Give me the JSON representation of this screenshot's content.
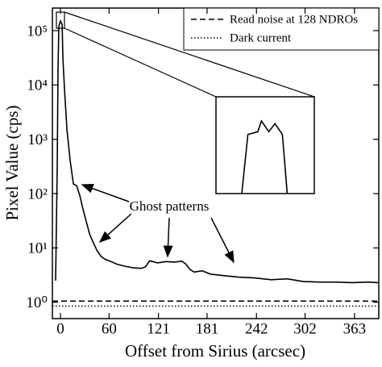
{
  "chart_data": {
    "type": "line",
    "x_label": "Offset from Sirius (arcsec)",
    "y_label": "Pixel Value (cps)",
    "log_y": true,
    "xlim": [
      -10,
      393
    ],
    "ylim": [
      0.5,
      260000
    ],
    "xticks": [
      0,
      60,
      121,
      181,
      242,
      302,
      363
    ],
    "yticks": [
      {
        "value": 1,
        "label": "10⁰"
      },
      {
        "value": 10,
        "label": "10¹"
      },
      {
        "value": 100,
        "label": "10²"
      },
      {
        "value": 1000,
        "label": "10³"
      },
      {
        "value": 10000,
        "label": "10⁴"
      },
      {
        "value": 100000,
        "label": "10⁵"
      }
    ],
    "legend": "upper right",
    "annotation": "Ghost patterns",
    "series": [
      {
        "color": "#000000",
        "style": "solid",
        "x": [
          -6,
          -4,
          -3,
          -2,
          0,
          2,
          3,
          5,
          8,
          12,
          16,
          20,
          24,
          28,
          32,
          36,
          40,
          45,
          50,
          55,
          60,
          70,
          80,
          90,
          100,
          105,
          110,
          120,
          130,
          140,
          150,
          155,
          160,
          165,
          175,
          185,
          200,
          220,
          240,
          260,
          280,
          300,
          320,
          340,
          360,
          380,
          392
        ],
        "values": [
          2.5,
          300,
          20000,
          120000,
          150000,
          130000,
          30000,
          8000,
          1500,
          400,
          150,
          140,
          90,
          50,
          30,
          18,
          13,
          9,
          7,
          6.2,
          5.8,
          5,
          4.6,
          4.3,
          4.2,
          4.5,
          5.8,
          5.3,
          5.6,
          5.5,
          5.7,
          5,
          4,
          3.6,
          3.8,
          3.3,
          3.1,
          2.9,
          2.8,
          2.6,
          2.7,
          2.4,
          2.35,
          2.35,
          2.3,
          2.35,
          2.3
        ]
      },
      {
        "name": "Read noise at 128 NDROs",
        "color": "#000000",
        "style": "dashed",
        "x": [
          -10,
          393
        ],
        "values": [
          1.05,
          1.05
        ]
      },
      {
        "name": "Dark current",
        "color": "#000000",
        "style": "dotted",
        "x": [
          -10,
          393
        ],
        "values": [
          0.85,
          0.85
        ]
      }
    ],
    "inset": {
      "xlim": [
        -4,
        4
      ],
      "ylim": [
        0,
        180000
      ],
      "x": [
        -1.9,
        -1.4,
        -0.6,
        -0.3,
        0.3,
        0.8,
        1.4,
        1.8
      ],
      "values": [
        0,
        110000,
        115000,
        135000,
        115000,
        130000,
        110000,
        0
      ]
    }
  }
}
